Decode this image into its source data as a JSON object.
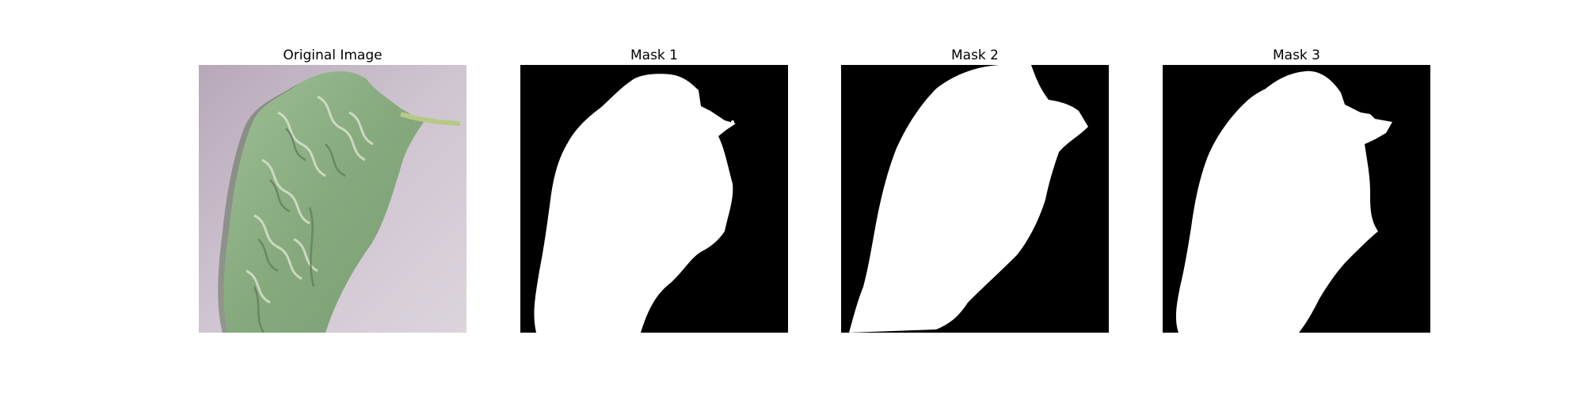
{
  "panels": [
    {
      "title": "Original Image",
      "kind": "photo"
    },
    {
      "title": "Mask 1",
      "kind": "mask"
    },
    {
      "title": "Mask 2",
      "kind": "mask"
    },
    {
      "title": "Mask 3",
      "kind": "mask"
    }
  ],
  "colors": {
    "background": "#ffffff",
    "mask_fg": "#ffffff",
    "mask_bg": "#000000",
    "leaf_green": "#8fae86",
    "backdrop_lavender": "#c8bcc9"
  }
}
